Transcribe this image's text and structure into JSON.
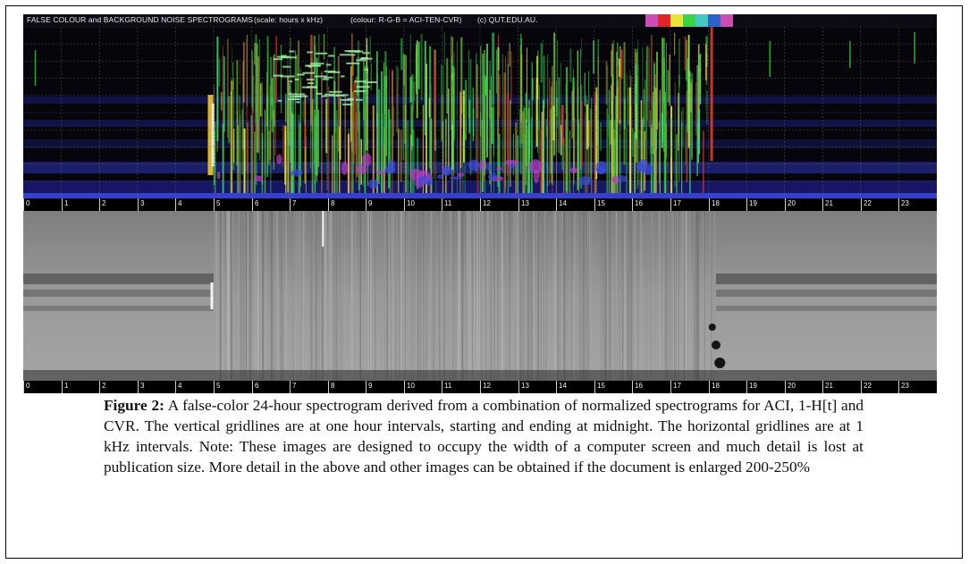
{
  "figure": {
    "header": {
      "title": "FALSE COLOUR and BACKGROUND NOISE SPECTROGRAMS",
      "scale": "(scale: hours x kHz)",
      "colour": "(colour: R-G-B = ACI-TEN-CVR)",
      "copyright": "(c) QUT.EDU.AU."
    },
    "legend_swatch_colors": [
      "#c94fb2",
      "#e0242a",
      "#e9e43a",
      "#3bd24a",
      "#46c7c3",
      "#2f62c8",
      "#c94fb2"
    ],
    "hour_labels": [
      "0",
      "1",
      "2",
      "3",
      "4",
      "5",
      "6",
      "7",
      "8",
      "9",
      "10",
      "11",
      "12",
      "13",
      "14",
      "15",
      "16",
      "17",
      "18",
      "19",
      "20",
      "21",
      "22",
      "23"
    ],
    "caption": {
      "label": "Figure 2:",
      "text": " A false-color 24-hour spectrogram derived from a combination of normalized spectrograms for ACI, 1-H[t] and CVR. The vertical gridlines are at one hour intervals, starting and ending at midnight. The horizontal gridlines are at 1 kHz intervals. Note: These images are designed to occupy the width of a computer screen and much detail is lost at publication size. More detail in the above and other images can be obtained if the document is enlarged 200-250%"
    }
  }
}
